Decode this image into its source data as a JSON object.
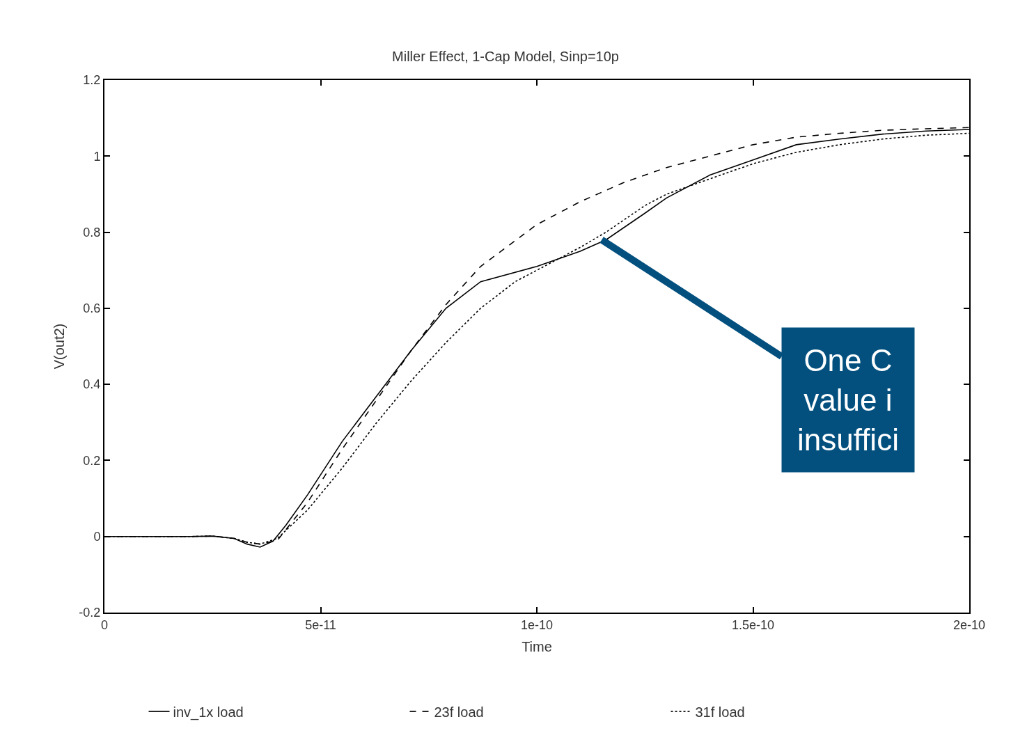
{
  "chart_data": {
    "type": "line",
    "title": "Miller Effect, 1-Cap Model, Sinp=10p",
    "xlabel": "Time",
    "ylabel": "V(out2)",
    "xlim": [
      0,
      2e-10
    ],
    "ylim": [
      -0.2,
      1.2
    ],
    "xticks": [
      {
        "value": 0,
        "label": "0"
      },
      {
        "value": 5e-11,
        "label": "5e-11"
      },
      {
        "value": 1e-10,
        "label": "1e-10"
      },
      {
        "value": 1.5e-10,
        "label": "1.5e-10"
      },
      {
        "value": 2e-10,
        "label": "2e-10"
      }
    ],
    "yticks": [
      {
        "value": -0.2,
        "label": "-0.2"
      },
      {
        "value": 0,
        "label": "0"
      },
      {
        "value": 0.2,
        "label": "0.2"
      },
      {
        "value": 0.4,
        "label": "0.4"
      },
      {
        "value": 0.6,
        "label": "0.6"
      },
      {
        "value": 0.8,
        "label": "0.8"
      },
      {
        "value": 1.0,
        "label": "1"
      },
      {
        "value": 1.2,
        "label": "1.2"
      }
    ],
    "grid": false,
    "legend": "bottom",
    "marker": "none",
    "series": [
      {
        "name": "inv_1x load",
        "color": "#000000",
        "line_style": "solid",
        "x": [
          0,
          2e-11,
          2.5e-11,
          3e-11,
          3.3e-11,
          3.6e-11,
          3.9e-11,
          4.2e-11,
          4.7e-11,
          5.5e-11,
          6.3e-11,
          7.1e-11,
          7.9e-11,
          8.7e-11,
          1e-10,
          1.1e-10,
          1.16e-10,
          1.25e-10,
          1.3e-10,
          1.4e-10,
          1.5e-10,
          1.6e-10,
          1.7e-10,
          1.8e-10,
          1.9e-10,
          2e-10
        ],
        "values": [
          0,
          0,
          0.001,
          -0.005,
          -0.02,
          -0.028,
          -0.012,
          0.03,
          0.11,
          0.25,
          0.37,
          0.49,
          0.6,
          0.67,
          0.71,
          0.75,
          0.78,
          0.85,
          0.89,
          0.95,
          0.99,
          1.03,
          1.045,
          1.058,
          1.066,
          1.07
        ]
      },
      {
        "name": "23f load",
        "color": "#000000",
        "line_style": "dashed",
        "x": [
          0,
          2e-11,
          2.5e-11,
          3e-11,
          3.3e-11,
          3.6e-11,
          4e-11,
          4.7e-11,
          5.5e-11,
          6.3e-11,
          7.1e-11,
          7.9e-11,
          8.7e-11,
          1e-10,
          1.1e-10,
          1.2e-10,
          1.3e-10,
          1.4e-10,
          1.5e-10,
          1.6e-10,
          1.7e-10,
          1.8e-10,
          1.9e-10,
          2e-10
        ],
        "values": [
          0,
          0,
          0.001,
          -0.005,
          -0.015,
          -0.02,
          -0.01,
          0.09,
          0.23,
          0.36,
          0.49,
          0.61,
          0.71,
          0.82,
          0.88,
          0.93,
          0.97,
          1.0,
          1.03,
          1.05,
          1.06,
          1.068,
          1.072,
          1.075
        ]
      },
      {
        "name": "31f load",
        "color": "#000000",
        "line_style": "dotted",
        "x": [
          0,
          2e-11,
          2.5e-11,
          3e-11,
          3.3e-11,
          3.6e-11,
          4e-11,
          4.7e-11,
          5.5e-11,
          6.3e-11,
          7.1e-11,
          7.9e-11,
          8.7e-11,
          9.5e-11,
          1e-10,
          1.1e-10,
          1.16e-10,
          1.25e-10,
          1.3e-10,
          1.4e-10,
          1.5e-10,
          1.6e-10,
          1.7e-10,
          1.8e-10,
          1.9e-10,
          2e-10
        ],
        "values": [
          0,
          0,
          0.001,
          -0.005,
          -0.015,
          -0.02,
          -0.005,
          0.07,
          0.18,
          0.3,
          0.41,
          0.51,
          0.6,
          0.67,
          0.7,
          0.76,
          0.8,
          0.87,
          0.9,
          0.94,
          0.98,
          1.01,
          1.03,
          1.045,
          1.055,
          1.06
        ]
      }
    ],
    "annotations": [
      {
        "text": "One C\nvalue i\ninsuffici",
        "x": 1.15e-10,
        "y": 0.78
      }
    ]
  }
}
